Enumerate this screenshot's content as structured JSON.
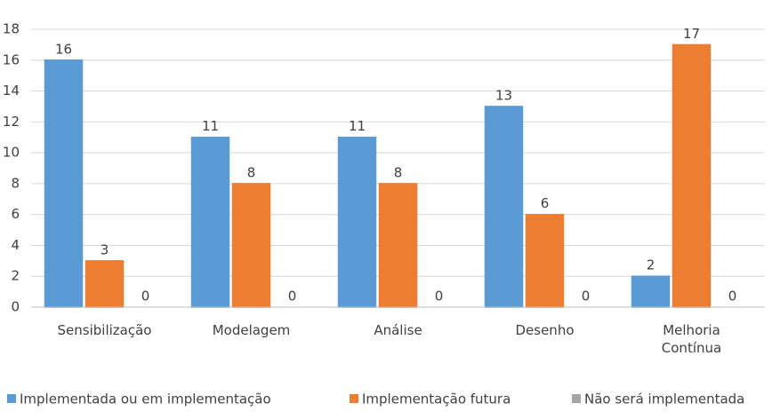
{
  "chart_data": {
    "type": "bar",
    "categories": [
      "Sensibilização",
      "Modelagem",
      "Análise",
      "Desenho",
      "Melhoria Contínua"
    ],
    "series": [
      {
        "name": "Implementada ou em implementação",
        "color": "#5b9bd5",
        "values": [
          16,
          11,
          11,
          13,
          2
        ]
      },
      {
        "name": "Implementação futura",
        "color": "#ed7d31",
        "values": [
          3,
          8,
          8,
          6,
          17
        ]
      },
      {
        "name": "Não será implementada",
        "color": "#a5a5a5",
        "values": [
          0,
          0,
          0,
          0,
          0
        ]
      }
    ],
    "ylim": [
      0,
      18
    ],
    "yticks": [
      0,
      2,
      4,
      6,
      8,
      10,
      12,
      14,
      16,
      18
    ],
    "grid": true,
    "legend": "bottom"
  }
}
